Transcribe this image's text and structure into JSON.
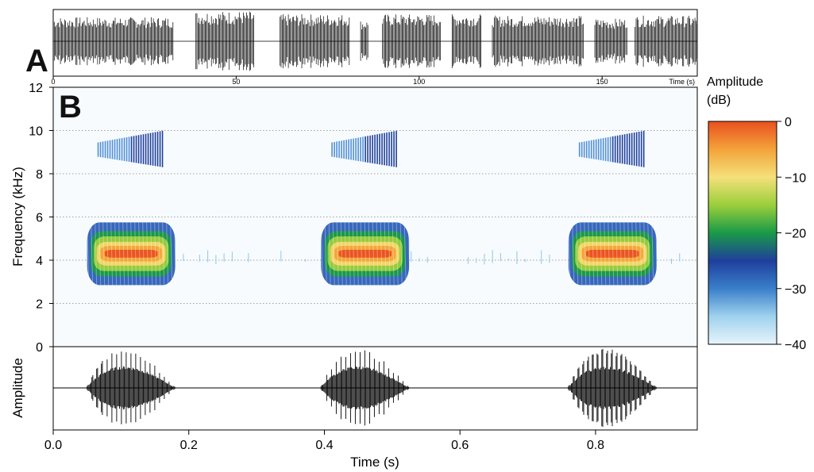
{
  "panel_labels": {
    "a": "A",
    "b": "B"
  },
  "colors": {
    "background": "#ffffff",
    "spectro_bg": "#f7fbfd",
    "waveform": "#000000",
    "grid": "#888888",
    "colorbar_stops": [
      "#e8f4fb",
      "#9fd2ee",
      "#3a7fc9",
      "#1e3f9c",
      "#1a9a47",
      "#9bcf3c",
      "#f5e07a",
      "#f3a33a",
      "#e9501f"
    ]
  },
  "chart_data": [
    {
      "id": "panel-a",
      "type": "waveform",
      "description_label": "A",
      "x_unit_label": "Time (s)",
      "xlim": [
        0,
        176
      ],
      "x_ticks": [
        0,
        50,
        100,
        150
      ],
      "x_tick_labels": [
        "0",
        "50",
        "100",
        "150"
      ],
      "segments": [
        {
          "start": 0,
          "end": 33,
          "level": 0.8
        },
        {
          "start": 39,
          "end": 55,
          "level": 1.0
        },
        {
          "start": 62,
          "end": 81,
          "level": 0.9
        },
        {
          "start": 84,
          "end": 86,
          "level": 0.7
        },
        {
          "start": 90,
          "end": 106,
          "level": 0.9
        },
        {
          "start": 109,
          "end": 117,
          "level": 0.9
        },
        {
          "start": 120,
          "end": 145,
          "level": 0.85
        },
        {
          "start": 148,
          "end": 157,
          "level": 0.75
        },
        {
          "start": 159,
          "end": 176,
          "level": 0.85
        }
      ]
    },
    {
      "id": "panel-b-spectrogram",
      "type": "heatmap",
      "description_label": "B",
      "ylabel": "Frequency (kHz)",
      "xlim": [
        0,
        0.95
      ],
      "ylim": [
        0,
        12
      ],
      "y_ticks": [
        0,
        2,
        4,
        6,
        8,
        10,
        12
      ],
      "y_tick_labels": [
        "0",
        "2",
        "4",
        "6",
        "8",
        "10",
        "12"
      ],
      "grid": true,
      "grid_y": [
        2,
        4,
        6,
        8,
        10
      ],
      "calls": [
        {
          "start": 0.05,
          "end": 0.18,
          "fundamental_khz": 4.3,
          "harmonic_khz": 9.1
        },
        {
          "start": 0.395,
          "end": 0.525,
          "fundamental_khz": 4.3,
          "harmonic_khz": 9.1
        },
        {
          "start": 0.76,
          "end": 0.89,
          "fundamental_khz": 4.3,
          "harmonic_khz": 9.1
        }
      ],
      "colorbar": {
        "title_line1": "Amplitude",
        "title_line2": "(dB)",
        "range": [
          -40,
          0
        ],
        "ticks": [
          0,
          -10,
          -20,
          -30,
          -40
        ],
        "tick_labels": [
          "0",
          "−10",
          "−20",
          "−30",
          "−40"
        ]
      }
    },
    {
      "id": "panel-b-oscillogram",
      "type": "waveform",
      "ylabel": "Amplitude",
      "xlabel": "Time (s)",
      "xlim": [
        0,
        0.95
      ],
      "x_ticks": [
        0.0,
        0.2,
        0.4,
        0.6,
        0.8
      ],
      "x_tick_labels": [
        "0.0",
        "0.2",
        "0.4",
        "0.6",
        "0.8"
      ],
      "calls": [
        {
          "start": 0.05,
          "end": 0.18
        },
        {
          "start": 0.395,
          "end": 0.525
        },
        {
          "start": 0.76,
          "end": 0.89
        }
      ]
    }
  ]
}
